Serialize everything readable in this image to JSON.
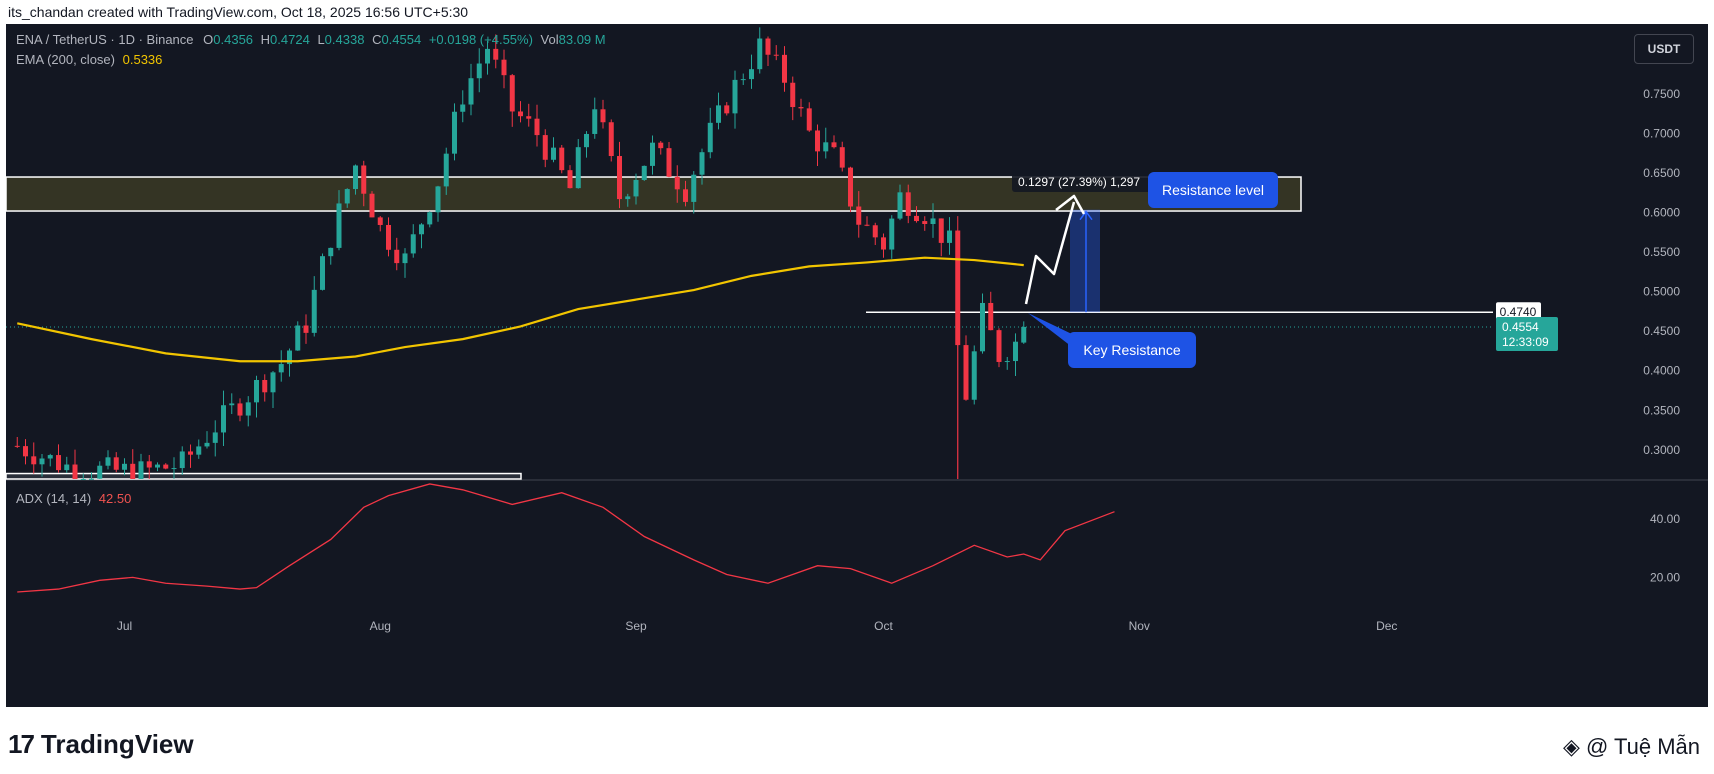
{
  "header": {
    "caption": "its_chandan created with TradingView.com, Oct 18, 2025 16:56 UTC+5:30"
  },
  "legend": {
    "symbol": "ENA / TetherUS · 1D · Binance",
    "o_label": "O",
    "o": "0.4356",
    "h_label": "H",
    "h": "0.4724",
    "l_label": "L",
    "l": "0.4338",
    "c_label": "C",
    "c": "0.4554",
    "change": "+0.0198 (+4.55%)",
    "vol_label": "Vol",
    "vol": "83.09 M",
    "ema_label": "EMA (200, close)",
    "ema": "0.5336",
    "adx_label": "ADX (14, 14)",
    "adx": "42.50"
  },
  "currency_button": "USDT",
  "colors": {
    "up": "#26a69a",
    "down": "#f23645",
    "ema": "#f2c500",
    "adx": "#f23645",
    "background": "#131722",
    "zone": "#3b3a24",
    "callout": "#1e53e5"
  },
  "chart_data": [
    {
      "type": "candlestick",
      "title": "ENA / TetherUS · 1D · Binance",
      "x_ticks": [
        "Jul",
        "Aug",
        "Sep",
        "Oct",
        "Nov",
        "Dec"
      ],
      "y_ticks": [
        "0.7500",
        "0.7000",
        "0.6500",
        "0.6000",
        "0.5500",
        "0.5000",
        "0.4500",
        "0.4000",
        "0.3500",
        "0.3000"
      ],
      "ylim": [
        0.26,
        0.84
      ],
      "price_labels": {
        "key": "0.4740",
        "current": "0.4554",
        "countdown": "12:33:09"
      },
      "resistance_zone": [
        0.602,
        0.645
      ],
      "key_resistance": 0.474,
      "lower_box_level": 0.27,
      "measure_label": "0.1297 (27.39%) 1,297",
      "annotations": [
        "Resistance level",
        "Key Resistance"
      ],
      "anchors": [
        {
          "date": "2025-06-18",
          "close": 0.305
        },
        {
          "date": "2025-06-25",
          "close": 0.275
        },
        {
          "date": "2025-07-03",
          "close": 0.272
        },
        {
          "date": "2025-07-08",
          "close": 0.282
        },
        {
          "date": "2025-07-12",
          "close": 0.33
        },
        {
          "date": "2025-07-16",
          "close": 0.37
        },
        {
          "date": "2025-07-20",
          "close": 0.41
        },
        {
          "date": "2025-07-23",
          "close": 0.46
        },
        {
          "date": "2025-07-26",
          "close": 0.57
        },
        {
          "date": "2025-07-29",
          "close": 0.66
        },
        {
          "date": "2025-08-01",
          "close": 0.58
        },
        {
          "date": "2025-08-04",
          "close": 0.54
        },
        {
          "date": "2025-08-08",
          "close": 0.64
        },
        {
          "date": "2025-08-11",
          "close": 0.75
        },
        {
          "date": "2025-08-14",
          "close": 0.81
        },
        {
          "date": "2025-08-17",
          "close": 0.73
        },
        {
          "date": "2025-08-20",
          "close": 0.7
        },
        {
          "date": "2025-08-24",
          "close": 0.63
        },
        {
          "date": "2025-08-27",
          "close": 0.74
        },
        {
          "date": "2025-08-30",
          "close": 0.62
        },
        {
          "date": "2025-09-03",
          "close": 0.68
        },
        {
          "date": "2025-09-07",
          "close": 0.63
        },
        {
          "date": "2025-09-10",
          "close": 0.7
        },
        {
          "date": "2025-09-13",
          "close": 0.76
        },
        {
          "date": "2025-09-16",
          "close": 0.81
        },
        {
          "date": "2025-09-19",
          "close": 0.77
        },
        {
          "date": "2025-09-22",
          "close": 0.7
        },
        {
          "date": "2025-09-25",
          "close": 0.67
        },
        {
          "date": "2025-09-28",
          "close": 0.59
        },
        {
          "date": "2025-10-01",
          "close": 0.56
        },
        {
          "date": "2025-10-03",
          "close": 0.62
        },
        {
          "date": "2025-10-06",
          "close": 0.6
        },
        {
          "date": "2025-10-09",
          "close": 0.56
        },
        {
          "date": "2025-10-10",
          "close": 0.43
        },
        {
          "date": "2025-10-11",
          "close": 0.37
        },
        {
          "date": "2025-10-13",
          "close": 0.47
        },
        {
          "date": "2025-10-15",
          "close": 0.42
        },
        {
          "date": "2025-10-17",
          "close": 0.4356
        },
        {
          "date": "2025-10-18",
          "close": 0.4554
        }
      ],
      "ema200": [
        {
          "date": "2025-06-18",
          "value": 0.46
        },
        {
          "date": "2025-06-27",
          "value": 0.44
        },
        {
          "date": "2025-07-06",
          "value": 0.422
        },
        {
          "date": "2025-07-15",
          "value": 0.412
        },
        {
          "date": "2025-07-22",
          "value": 0.412
        },
        {
          "date": "2025-07-29",
          "value": 0.418
        },
        {
          "date": "2025-08-04",
          "value": 0.43
        },
        {
          "date": "2025-08-11",
          "value": 0.44
        },
        {
          "date": "2025-08-18",
          "value": 0.456
        },
        {
          "date": "2025-08-25",
          "value": 0.478
        },
        {
          "date": "2025-09-01",
          "value": 0.49
        },
        {
          "date": "2025-09-08",
          "value": 0.502
        },
        {
          "date": "2025-09-15",
          "value": 0.52
        },
        {
          "date": "2025-09-22",
          "value": 0.532
        },
        {
          "date": "2025-09-29",
          "value": 0.537
        },
        {
          "date": "2025-10-06",
          "value": 0.543
        },
        {
          "date": "2025-10-12",
          "value": 0.54
        },
        {
          "date": "2025-10-18",
          "value": 0.5336
        }
      ]
    },
    {
      "type": "line",
      "title": "ADX (14, 14)",
      "y_ticks": [
        "40.00",
        "20.00"
      ],
      "ylim": [
        5,
        54
      ],
      "series": [
        {
          "date": "2025-06-18",
          "value": 15
        },
        {
          "date": "2025-06-23",
          "value": 16
        },
        {
          "date": "2025-06-28",
          "value": 19
        },
        {
          "date": "2025-07-02",
          "value": 20
        },
        {
          "date": "2025-07-06",
          "value": 18
        },
        {
          "date": "2025-07-11",
          "value": 17
        },
        {
          "date": "2025-07-15",
          "value": 16
        },
        {
          "date": "2025-07-17",
          "value": 16.5
        },
        {
          "date": "2025-07-21",
          "value": 24
        },
        {
          "date": "2025-07-26",
          "value": 33
        },
        {
          "date": "2025-07-30",
          "value": 44
        },
        {
          "date": "2025-08-02",
          "value": 48
        },
        {
          "date": "2025-08-07",
          "value": 52
        },
        {
          "date": "2025-08-11",
          "value": 50
        },
        {
          "date": "2025-08-17",
          "value": 45
        },
        {
          "date": "2025-08-23",
          "value": 49
        },
        {
          "date": "2025-08-28",
          "value": 44
        },
        {
          "date": "2025-09-02",
          "value": 34
        },
        {
          "date": "2025-09-08",
          "value": 26
        },
        {
          "date": "2025-09-12",
          "value": 21
        },
        {
          "date": "2025-09-17",
          "value": 18
        },
        {
          "date": "2025-09-23",
          "value": 24
        },
        {
          "date": "2025-09-27",
          "value": 23
        },
        {
          "date": "2025-10-02",
          "value": 18
        },
        {
          "date": "2025-10-07",
          "value": 24
        },
        {
          "date": "2025-10-12",
          "value": 31
        },
        {
          "date": "2025-10-16",
          "value": 27
        },
        {
          "date": "2025-10-18",
          "value": 28
        },
        {
          "date": "2025-10-20",
          "value": 26
        },
        {
          "date": "2025-10-23",
          "value": 36
        },
        {
          "date": "2025-10-29",
          "value": 42.5
        }
      ]
    }
  ],
  "footer": {
    "brand": "TradingView",
    "credit": "@ Tuệ Mẫn"
  }
}
